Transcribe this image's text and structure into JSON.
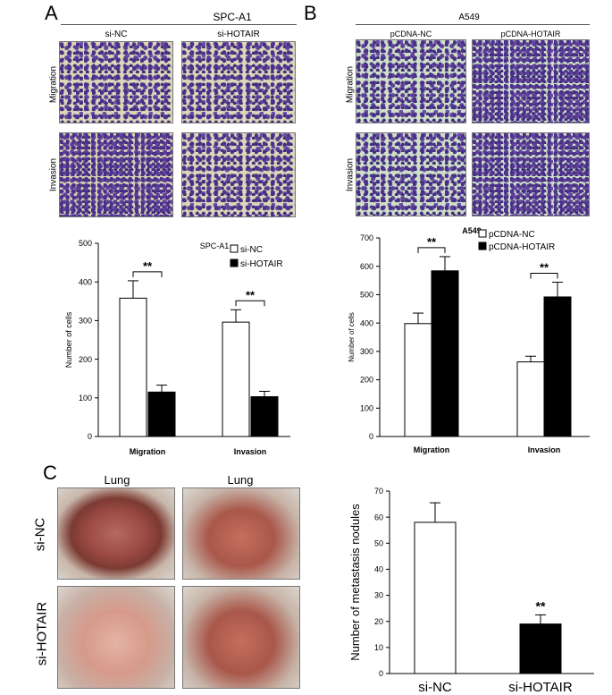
{
  "panelA": {
    "label": "A",
    "title": "SPC-A1",
    "columns": [
      "si-NC",
      "si-HOTAIR"
    ],
    "rows": [
      "Migration",
      "Invasion"
    ]
  },
  "panelB": {
    "label": "B",
    "title": "A549",
    "columns": [
      "pCDNA-NC",
      "pCDNA-HOTAIR"
    ],
    "rows": [
      "Migration",
      "Invasion"
    ]
  },
  "panelC": {
    "label": "C",
    "columns": [
      "Lung",
      "Lung"
    ],
    "rows": [
      "si-NC",
      "si-HOTAIR"
    ]
  },
  "chart_data": [
    {
      "type": "bar",
      "title": "SPC-A1",
      "ylabel": "Number of cells",
      "categories": [
        "Migration",
        "Invasion"
      ],
      "ylim": [
        0,
        500
      ],
      "yticks": [
        0,
        100,
        200,
        300,
        400,
        500
      ],
      "series": [
        {
          "name": "si-NC",
          "values": [
            358,
            296
          ],
          "errors": [
            45,
            32
          ],
          "color": "#ffffff"
        },
        {
          "name": "si-HOTAIR",
          "values": [
            115,
            103
          ],
          "errors": [
            18,
            14
          ],
          "color": "#000000"
        }
      ],
      "significance": [
        "**",
        "**"
      ],
      "legend": "top-right"
    },
    {
      "type": "bar",
      "title": "A549",
      "ylabel": "Number of cells",
      "categories": [
        "Migration",
        "Invasion"
      ],
      "ylim": [
        0,
        700
      ],
      "yticks": [
        0,
        100,
        200,
        300,
        400,
        500,
        600,
        700
      ],
      "series": [
        {
          "name": "pCDNA-NC",
          "values": [
            398,
            263
          ],
          "errors": [
            37,
            20
          ],
          "color": "#ffffff"
        },
        {
          "name": "pCDNA-HOTAIR",
          "values": [
            584,
            492
          ],
          "errors": [
            50,
            52
          ],
          "color": "#000000"
        }
      ],
      "significance": [
        "**",
        "**"
      ],
      "legend": "top-right"
    },
    {
      "type": "bar",
      "ylabel": "Number of metastasis nodules",
      "categories": [
        "si-NC",
        "si-HOTAIR"
      ],
      "ylim": [
        0,
        70
      ],
      "yticks": [
        0,
        10,
        20,
        30,
        40,
        50,
        60,
        70
      ],
      "values": [
        58,
        19
      ],
      "errors": [
        7.5,
        3.5
      ],
      "colors": [
        "#ffffff",
        "#000000"
      ],
      "significance": [
        "",
        "**"
      ]
    }
  ]
}
